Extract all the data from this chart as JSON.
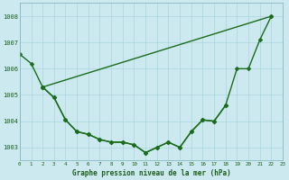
{
  "background_color": "#cce9f0",
  "grid_color": "#aad4dc",
  "line_color": "#1a6b1a",
  "y_min": 1002.5,
  "y_max": 1008.5,
  "y_ticks": [
    1003,
    1004,
    1005,
    1006,
    1007,
    1008
  ],
  "xlabel": "Graphe pression niveau de la mer (hPa)",
  "tick_label_color": "#1a5c1a",
  "line1_x": [
    0,
    1,
    2,
    22
  ],
  "line1_y": [
    1006.55,
    1006.2,
    1005.3,
    1008.0
  ],
  "line2_x": [
    2,
    3,
    4,
    5,
    6,
    7,
    8,
    9,
    10,
    11,
    12,
    13,
    14,
    15,
    16,
    17,
    18
  ],
  "line2_y": [
    1005.3,
    1004.9,
    1004.05,
    1003.6,
    1003.5,
    1003.3,
    1003.2,
    1003.2,
    1003.1,
    1002.8,
    1003.0,
    1003.2,
    1003.0,
    1003.6,
    1004.05,
    1004.0,
    1004.6
  ],
  "line3_x": [
    2,
    3,
    4,
    5,
    6,
    7,
    8,
    9,
    10,
    11,
    12,
    13,
    14,
    15,
    16,
    17,
    18,
    19,
    20,
    21,
    22
  ],
  "line3_y": [
    1005.3,
    1004.9,
    1004.05,
    1003.6,
    1003.5,
    1003.3,
    1003.2,
    1003.2,
    1003.1,
    1002.8,
    1003.0,
    1003.2,
    1003.0,
    1003.6,
    1004.05,
    1004.0,
    1004.6,
    1006.0,
    1006.0,
    1007.1,
    1008.0
  ]
}
